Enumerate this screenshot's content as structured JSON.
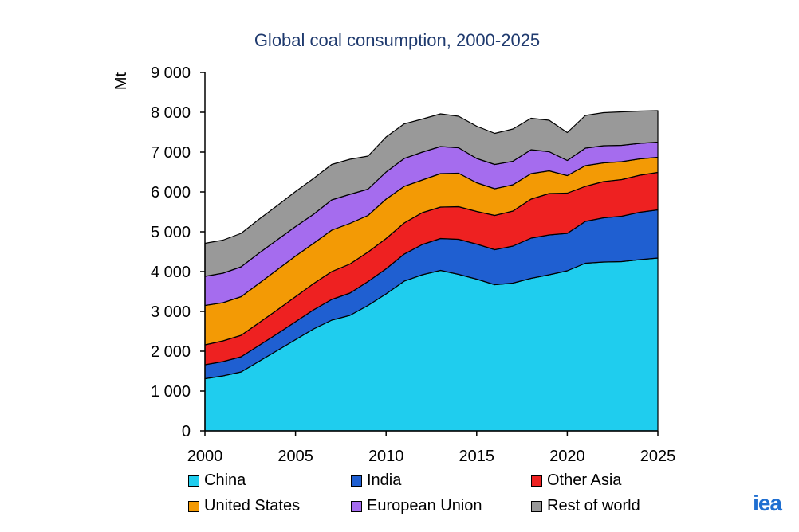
{
  "logo_text": "iea",
  "chart_data": {
    "type": "area",
    "stacked": true,
    "title": "Global coal consumption, 2000-2025",
    "ylabel": "Mt",
    "xlabel": "",
    "ylim": [
      0,
      9000
    ],
    "yticks": [
      0,
      1000,
      2000,
      3000,
      4000,
      5000,
      6000,
      7000,
      8000,
      9000
    ],
    "ytick_labels": [
      "0",
      "1 000",
      "2 000",
      "3 000",
      "4 000",
      "5 000",
      "6 000",
      "7 000",
      "8 000",
      "9 000"
    ],
    "xticks": [
      2000,
      2005,
      2010,
      2015,
      2020,
      2025
    ],
    "x": [
      2000,
      2001,
      2002,
      2003,
      2004,
      2005,
      2006,
      2007,
      2008,
      2009,
      2010,
      2011,
      2012,
      2013,
      2014,
      2015,
      2016,
      2017,
      2018,
      2019,
      2020,
      2021,
      2022,
      2023,
      2024,
      2025
    ],
    "grid": "horizontal",
    "legend_position": "bottom",
    "series": [
      {
        "name": "China",
        "color": "#1fcdee",
        "values": [
          1310,
          1380,
          1480,
          1750,
          2020,
          2290,
          2560,
          2780,
          2900,
          3150,
          3440,
          3760,
          3920,
          4030,
          3930,
          3810,
          3670,
          3710,
          3830,
          3920,
          4020,
          4210,
          4240,
          4250,
          4300,
          4340
        ]
      },
      {
        "name": "India",
        "color": "#1f5fd1",
        "values": [
          350,
          360,
          380,
          400,
          420,
          450,
          480,
          520,
          560,
          600,
          630,
          680,
          760,
          800,
          880,
          880,
          880,
          930,
          1010,
          1000,
          940,
          1050,
          1110,
          1140,
          1190,
          1210
        ]
      },
      {
        "name": "Other Asia",
        "color": "#ee2121",
        "values": [
          500,
          520,
          540,
          570,
          600,
          630,
          660,
          700,
          730,
          740,
          760,
          780,
          800,
          790,
          820,
          820,
          860,
          880,
          980,
          1040,
          1010,
          880,
          910,
          920,
          930,
          940
        ]
      },
      {
        "name": "United States",
        "color": "#f39a05",
        "values": [
          990,
          960,
          970,
          990,
          1010,
          1020,
          1010,
          1040,
          1020,
          920,
          990,
          920,
          820,
          840,
          840,
          720,
          670,
          660,
          640,
          570,
          440,
          520,
          470,
          450,
          410,
          380
        ]
      },
      {
        "name": "European Union",
        "color": "#a56cee",
        "values": [
          730,
          740,
          750,
          760,
          750,
          740,
          730,
          760,
          730,
          660,
          680,
          700,
          700,
          680,
          640,
          610,
          610,
          590,
          600,
          480,
          380,
          440,
          430,
          410,
          390,
          380
        ]
      },
      {
        "name": "Rest of world",
        "color": "#999999",
        "values": [
          830,
          830,
          840,
          850,
          860,
          880,
          900,
          890,
          880,
          830,
          880,
          870,
          830,
          820,
          790,
          810,
          780,
          810,
          790,
          790,
          700,
          820,
          830,
          840,
          810,
          790
        ]
      }
    ]
  }
}
